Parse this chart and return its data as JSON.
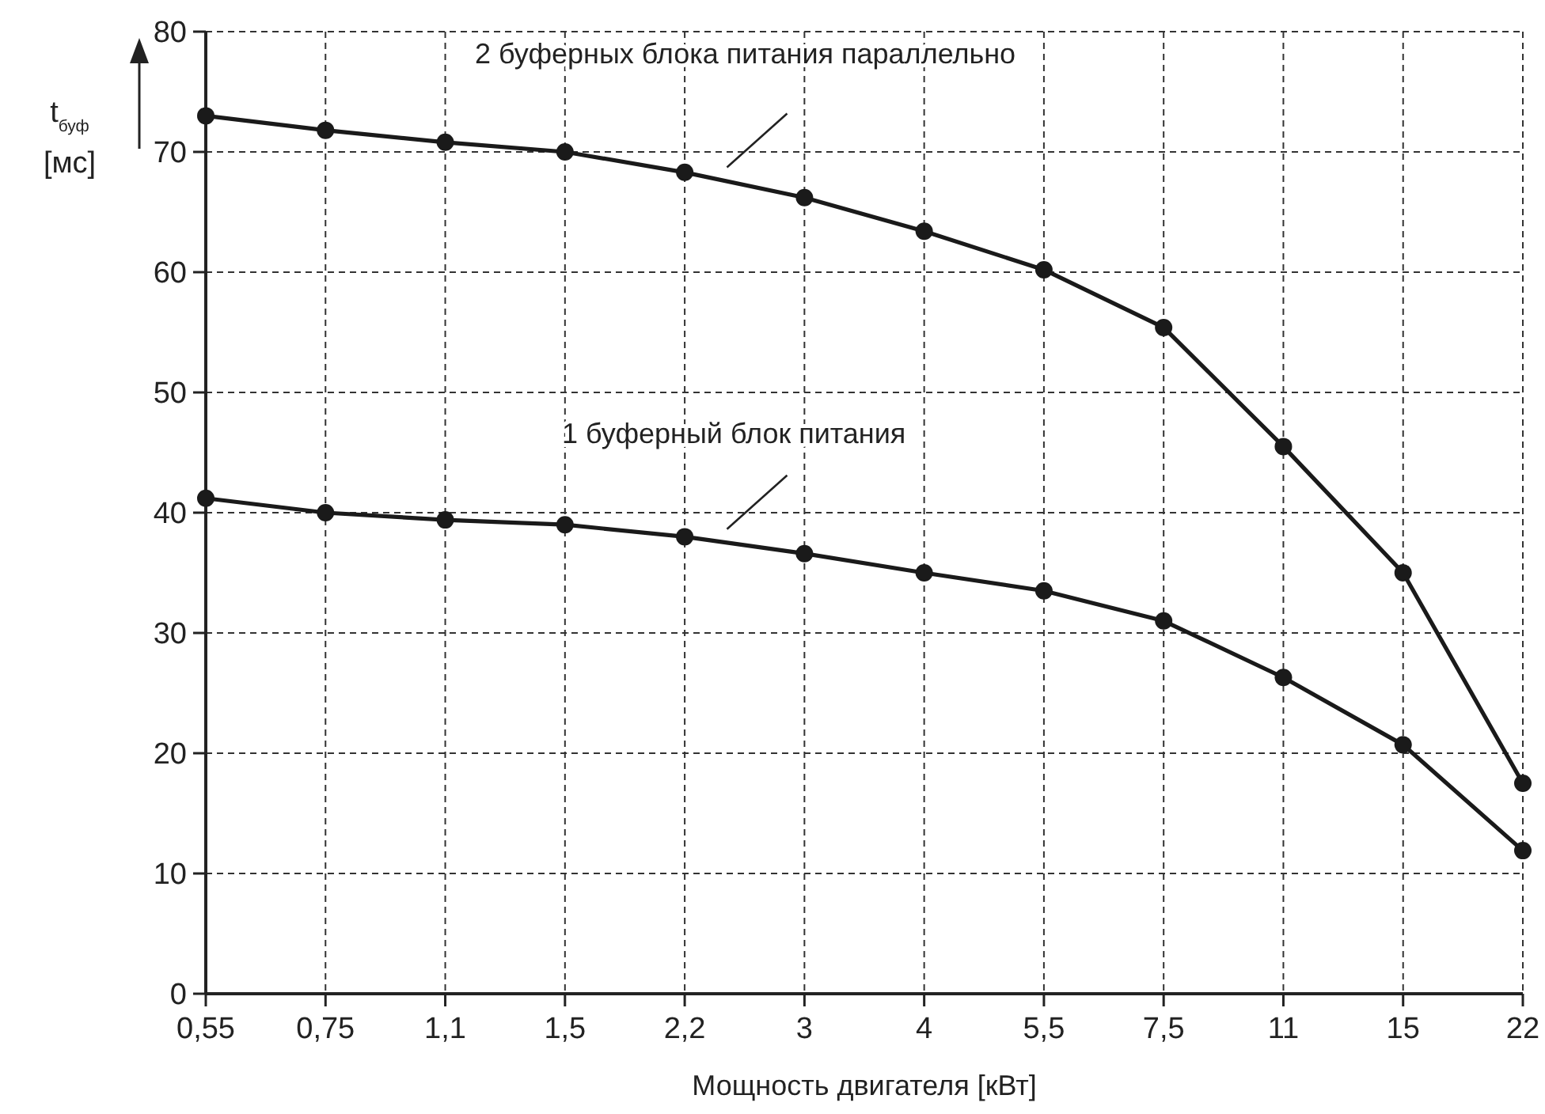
{
  "chart_data": {
    "type": "line",
    "xlabel": "Мощность двигателя [кВт]",
    "ylabel": "t$_{буф}$ [мс]",
    "categories": [
      "0,55",
      "0,75",
      "1,1",
      "1,5",
      "2,2",
      "3",
      "4",
      "5,5",
      "7,5",
      "11",
      "15",
      "22"
    ],
    "series": [
      {
        "name": "2 буферных блока питания параллельно",
        "color": "#1a1a1a",
        "values": [
          73,
          71.8,
          70.8,
          70,
          68.3,
          66.2,
          63.4,
          60.2,
          55.4,
          45.5,
          35,
          17.5
        ]
      },
      {
        "name": "1 буферный блок питания",
        "color": "#1a1a1a",
        "values": [
          41.2,
          40,
          39.4,
          39,
          38,
          36.6,
          35,
          33.5,
          31,
          26.3,
          20.7,
          11.9
        ]
      }
    ],
    "ylim": [
      0,
      80
    ],
    "yticks": [
      0,
      10,
      20,
      30,
      40,
      50,
      60,
      70,
      80
    ],
    "grid": true,
    "marker": "circle",
    "line_style": "solid"
  }
}
